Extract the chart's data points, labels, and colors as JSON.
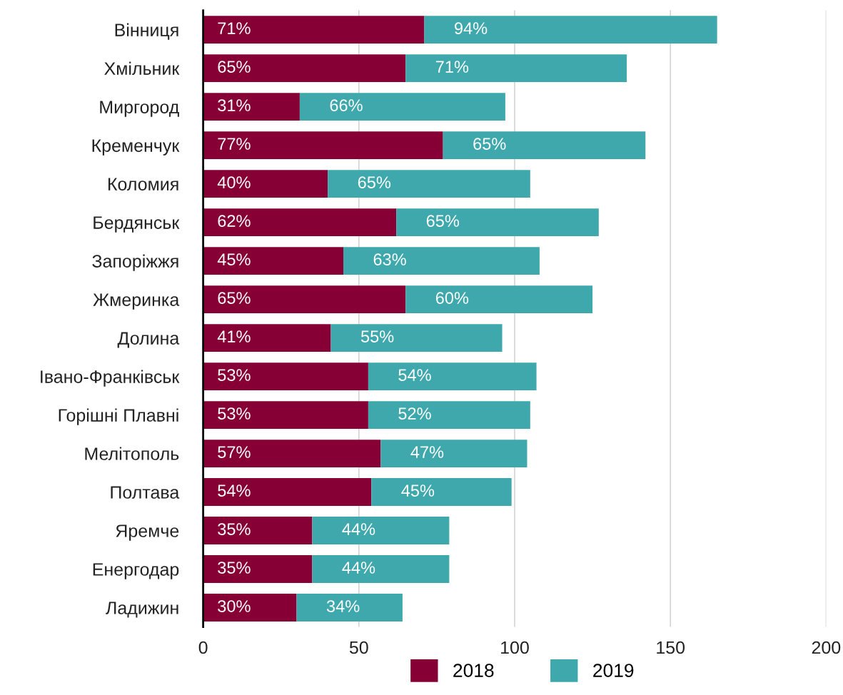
{
  "chart_data": {
    "type": "bar",
    "orientation": "horizontal",
    "stacked": true,
    "categories": [
      "Вінниця",
      "Хмільник",
      "Миргород",
      "Кременчук",
      "Коломия",
      "Бердянськ",
      "Запоріжжя",
      "Жмеринка",
      "Долина",
      "Івано-Франківськ",
      "Горішні Плавні",
      "Мелітополь",
      "Полтава",
      "Яремче",
      "Енергодар",
      "Ладижин"
    ],
    "series": [
      {
        "name": "2018",
        "color": "#870035",
        "values": [
          71,
          65,
          31,
          77,
          40,
          62,
          45,
          65,
          41,
          53,
          53,
          57,
          54,
          35,
          35,
          30
        ],
        "value_labels": [
          "71%",
          "65%",
          "31%",
          "77%",
          "40%",
          "62%",
          "45%",
          "65%",
          "41%",
          "53%",
          "53%",
          "57%",
          "54%",
          "35%",
          "35%",
          "30%"
        ]
      },
      {
        "name": "2019",
        "color": "#3ea8ac",
        "values": [
          94,
          71,
          66,
          65,
          65,
          65,
          63,
          60,
          55,
          54,
          52,
          47,
          45,
          44,
          44,
          34
        ],
        "value_labels": [
          "94%",
          "71%",
          "66%",
          "65%",
          "65%",
          "65%",
          "63%",
          "60%",
          "55%",
          "54%",
          "52%",
          "47%",
          "45%",
          "44%",
          "44%",
          "34%"
        ]
      }
    ],
    "xlim": [
      0,
      200
    ],
    "xticks": [
      0,
      50,
      100,
      150,
      200
    ],
    "grid": "x",
    "legend": "bottom"
  }
}
